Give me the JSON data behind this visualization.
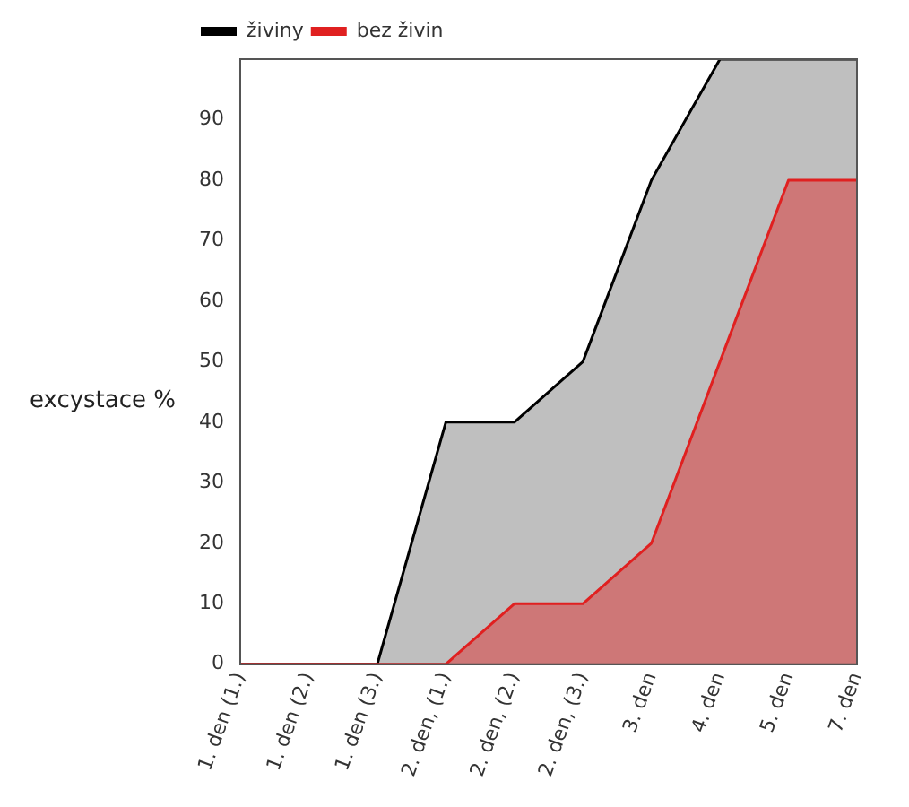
{
  "chart_data": {
    "type": "area",
    "ylabel": "excystace %",
    "categories": [
      "1. den (1.)",
      "1. den (2.)",
      "1. den (3.)",
      "2. den, (1.)",
      "2. den, (2.)",
      "2. den, (3.)",
      "3. den",
      "4. den",
      "5. den",
      "7. den"
    ],
    "series": [
      {
        "name": "živiny",
        "color": "#000000",
        "values": [
          0,
          0,
          0,
          40,
          40,
          50,
          80,
          100,
          100,
          100
        ]
      },
      {
        "name": "bez živin",
        "color": "#e02020",
        "values": [
          0,
          0,
          0,
          0,
          10,
          10,
          20,
          50,
          80,
          80
        ]
      }
    ],
    "ylim": [
      0,
      100
    ],
    "yticks": [
      0,
      10,
      20,
      30,
      40,
      50,
      60,
      70,
      80,
      90
    ],
    "grid": false,
    "legend": "top left"
  }
}
